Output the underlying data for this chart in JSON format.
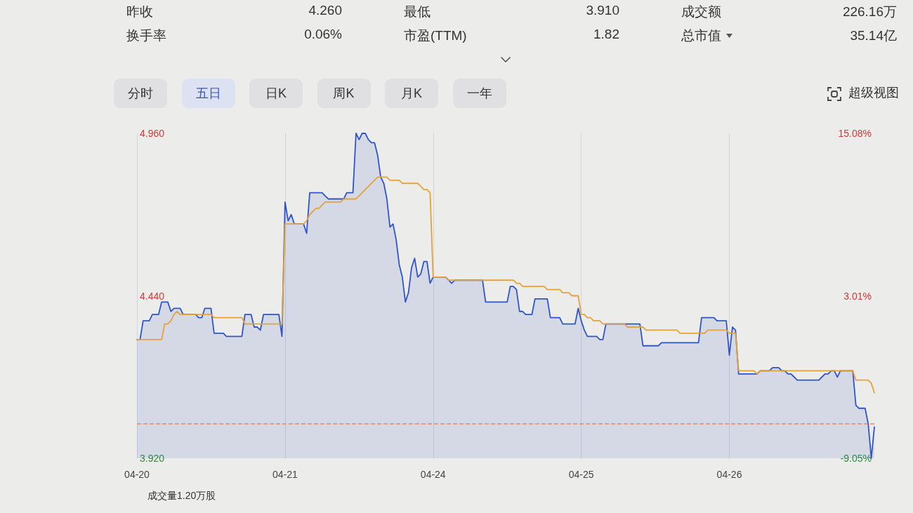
{
  "chart_data": [
    {
      "type": "other",
      "annotations": [
        "昨收",
        "4.260",
        "最低",
        "3.910",
        "成交额",
        "226.16万",
        "换手率",
        "0.06%",
        "市盈(TTM)",
        "1.82",
        "总市值",
        "35.14亿"
      ]
    },
    {
      "type": "other",
      "annotations": [
        "分时",
        "五日",
        "日K",
        "周K",
        "月K",
        "一年",
        "超级视图"
      ]
    },
    {
      "type": "line",
      "categories": [
        "04-20",
        null,
        null,
        null,
        null,
        null,
        null,
        null,
        null,
        null,
        null,
        null,
        null,
        null,
        null,
        null,
        null,
        null,
        null,
        null,
        null,
        null,
        null,
        null,
        null,
        null,
        null,
        null,
        null,
        null,
        null,
        null,
        null,
        null,
        null,
        null,
        null,
        null,
        null,
        null,
        null,
        null,
        null,
        null,
        null,
        null,
        null,
        null,
        "04-21",
        null,
        null,
        null,
        null,
        null,
        null,
        null,
        null,
        null,
        null,
        null,
        null,
        null,
        null,
        null,
        null,
        null,
        null,
        null,
        null,
        null,
        null,
        null,
        null,
        null,
        null,
        null,
        null,
        null,
        null,
        null,
        null,
        null,
        null,
        null,
        null,
        null,
        null,
        null,
        null,
        null,
        null,
        null,
        null,
        null,
        null,
        null,
        "04-24",
        null,
        null,
        null,
        null,
        null,
        null,
        null,
        null,
        null,
        null,
        null,
        null,
        null,
        null,
        null,
        null,
        null,
        null,
        null,
        null,
        null,
        null,
        null,
        null,
        null,
        null,
        null,
        null,
        null,
        null,
        null,
        null,
        null,
        null,
        null,
        null,
        null,
        null,
        null,
        null,
        null,
        null,
        null,
        null,
        null,
        null,
        null,
        "04-25",
        null,
        null,
        null,
        null,
        null,
        null,
        null,
        null,
        null,
        null,
        null,
        null,
        null,
        null,
        null,
        null,
        null,
        null,
        null,
        null,
        null,
        null,
        null,
        null,
        null,
        null,
        null,
        null,
        null,
        null,
        null,
        null,
        null,
        null,
        null,
        null,
        null,
        null,
        null,
        null,
        null,
        null,
        null,
        null,
        null,
        null,
        null,
        "04-26",
        null,
        null,
        null,
        null,
        null,
        null,
        null,
        null,
        null,
        null,
        null,
        null,
        null,
        null,
        null,
        null,
        null,
        null,
        null,
        null,
        null,
        null,
        null,
        null,
        null,
        null,
        null,
        null,
        null,
        null,
        null,
        null,
        null,
        null,
        null,
        null,
        null,
        null,
        null,
        null,
        null,
        null,
        null,
        null,
        null,
        null,
        null
      ],
      "ylim": [
        3.92,
        4.96
      ],
      "yticks": [
        {
          "value": 3.92,
          "label": "3.920"
        },
        {
          "value": 4.44,
          "label": "4.440"
        },
        {
          "value": 4.96,
          "label": "4.960"
        }
      ],
      "y2lim": [
        -9.05,
        15.08
      ],
      "y2ticks": [
        {
          "value": -9.05,
          "label": "-9.05%"
        },
        {
          "value": 3.01,
          "label": "3.01%"
        },
        {
          "value": 15.08,
          "label": "15.08%"
        }
      ],
      "grid": "x",
      "marker": "none",
      "line_style": "solid",
      "ref_lines": [
        {
          "axis": "y",
          "value": 4.03,
          "color": "#e4876a",
          "line_style": "dashed"
        }
      ],
      "annotations": [
        "成交量1.20万股"
      ],
      "series": [
        {
          "type": "area",
          "color": "#2f55c9",
          "values": [
            4.3,
            4.3,
            4.36,
            4.36,
            4.36,
            4.38,
            4.38,
            4.38,
            4.42,
            4.42,
            4.42,
            4.39,
            4.4,
            4.4,
            4.4,
            4.38,
            4.38,
            4.38,
            4.38,
            4.38,
            4.37,
            4.37,
            4.4,
            4.4,
            4.4,
            4.32,
            4.32,
            4.32,
            4.32,
            4.31,
            4.31,
            4.31,
            4.31,
            4.31,
            4.31,
            4.38,
            4.38,
            4.38,
            4.34,
            4.34,
            4.33,
            4.38,
            4.38,
            4.38,
            4.38,
            4.38,
            4.38,
            4.31,
            4.74,
            4.68,
            4.7,
            4.67,
            4.67,
            4.67,
            4.67,
            4.64,
            4.77,
            4.77,
            4.77,
            4.77,
            4.77,
            4.76,
            4.75,
            4.75,
            4.75,
            4.75,
            4.75,
            4.75,
            4.77,
            4.77,
            4.77,
            4.96,
            4.94,
            4.96,
            4.96,
            4.94,
            4.93,
            4.93,
            4.89,
            4.82,
            4.8,
            4.75,
            4.66,
            4.67,
            4.62,
            4.54,
            4.5,
            4.42,
            4.45,
            4.53,
            4.56,
            4.5,
            4.51,
            4.55,
            4.55,
            4.48,
            4.5,
            4.5,
            4.5,
            4.5,
            4.5,
            4.49,
            4.48,
            4.49,
            4.49,
            4.49,
            4.49,
            4.49,
            4.49,
            4.49,
            4.49,
            4.49,
            4.49,
            4.42,
            4.42,
            4.42,
            4.42,
            4.42,
            4.42,
            4.42,
            4.42,
            4.47,
            4.47,
            4.46,
            4.39,
            4.39,
            4.38,
            4.38,
            4.38,
            4.43,
            4.43,
            4.43,
            4.43,
            4.43,
            4.37,
            4.37,
            4.37,
            4.37,
            4.35,
            4.35,
            4.35,
            4.35,
            4.35,
            4.4,
            4.36,
            4.33,
            4.31,
            4.31,
            4.31,
            4.31,
            4.3,
            4.3,
            4.35,
            4.35,
            4.35,
            4.35,
            4.35,
            4.35,
            4.35,
            4.35,
            4.35,
            4.35,
            4.35,
            4.35,
            4.28,
            4.28,
            4.28,
            4.28,
            4.28,
            4.28,
            4.29,
            4.29,
            4.29,
            4.29,
            4.29,
            4.29,
            4.29,
            4.29,
            4.29,
            4.29,
            4.29,
            4.29,
            4.29,
            4.37,
            4.37,
            4.37,
            4.37,
            4.37,
            4.36,
            4.36,
            4.36,
            4.36,
            4.25,
            4.34,
            4.33,
            4.19,
            4.19,
            4.19,
            4.19,
            4.19,
            4.19,
            4.19,
            4.2,
            4.2,
            4.2,
            4.2,
            4.21,
            4.21,
            4.21,
            4.2,
            4.2,
            4.19,
            4.19,
            4.18,
            4.17,
            4.17,
            4.17,
            4.17,
            4.17,
            4.17,
            4.17,
            4.17,
            4.18,
            4.19,
            4.19,
            4.2,
            4.2,
            4.18,
            4.2,
            4.2,
            4.2,
            4.2,
            4.2,
            4.09,
            4.08,
            4.08,
            4.08,
            4.03,
            3.92,
            4.02
          ]
        },
        {
          "type": "line",
          "color": "#e3a33a",
          "values": [
            4.3,
            4.3,
            4.3,
            4.3,
            4.3,
            4.3,
            4.3,
            4.3,
            4.3,
            4.35,
            4.35,
            4.36,
            4.38,
            4.39,
            4.38,
            4.38,
            4.38,
            4.38,
            4.38,
            4.38,
            4.38,
            4.38,
            4.38,
            4.38,
            4.38,
            4.37,
            4.37,
            4.37,
            4.37,
            4.37,
            4.37,
            4.37,
            4.37,
            4.37,
            4.37,
            4.35,
            4.35,
            4.35,
            4.35,
            4.35,
            4.35,
            4.35,
            4.35,
            4.35,
            4.35,
            4.35,
            4.35,
            4.35,
            4.67,
            4.67,
            4.67,
            4.67,
            4.67,
            4.67,
            4.67,
            4.68,
            4.7,
            4.71,
            4.72,
            4.72,
            4.73,
            4.74,
            4.74,
            4.74,
            4.74,
            4.74,
            4.74,
            4.75,
            4.75,
            4.75,
            4.75,
            4.75,
            4.76,
            4.77,
            4.78,
            4.79,
            4.8,
            4.81,
            4.82,
            4.82,
            4.82,
            4.82,
            4.81,
            4.81,
            4.81,
            4.81,
            4.8,
            4.8,
            4.8,
            4.8,
            4.8,
            4.8,
            4.79,
            4.78,
            4.78,
            4.77,
            4.5,
            4.5,
            4.5,
            4.5,
            4.5,
            4.49,
            4.49,
            4.49,
            4.49,
            4.49,
            4.49,
            4.49,
            4.49,
            4.49,
            4.49,
            4.49,
            4.49,
            4.49,
            4.49,
            4.49,
            4.49,
            4.49,
            4.49,
            4.49,
            4.49,
            4.49,
            4.49,
            4.48,
            4.48,
            4.47,
            4.47,
            4.47,
            4.47,
            4.47,
            4.47,
            4.47,
            4.47,
            4.46,
            4.46,
            4.46,
            4.46,
            4.46,
            4.45,
            4.45,
            4.45,
            4.44,
            4.44,
            4.44,
            4.38,
            4.38,
            4.37,
            4.37,
            4.36,
            4.36,
            4.36,
            4.35,
            4.35,
            4.35,
            4.35,
            4.35,
            4.35,
            4.35,
            4.35,
            4.34,
            4.34,
            4.34,
            4.34,
            4.34,
            4.34,
            4.33,
            4.33,
            4.33,
            4.33,
            4.33,
            4.33,
            4.33,
            4.33,
            4.33,
            4.33,
            4.33,
            4.32,
            4.32,
            4.32,
            4.32,
            4.32,
            4.32,
            4.32,
            4.32,
            4.32,
            4.33,
            4.33,
            4.33,
            4.33,
            4.33,
            4.33,
            4.33,
            4.32,
            4.32,
            4.32,
            4.2,
            4.2,
            4.2,
            4.2,
            4.2,
            4.2,
            4.19,
            4.2,
            4.2,
            4.2,
            4.2,
            4.2,
            4.2,
            4.2,
            4.2,
            4.2,
            4.2,
            4.2,
            4.2,
            4.2,
            4.2,
            4.2,
            4.2,
            4.2,
            4.2,
            4.2,
            4.2,
            4.2,
            4.2,
            4.2,
            4.2,
            4.2,
            4.2,
            4.2,
            4.2,
            4.2,
            4.2,
            4.2,
            4.17,
            4.17,
            4.17,
            4.17,
            4.17,
            4.16,
            4.13
          ]
        }
      ]
    }
  ]
}
